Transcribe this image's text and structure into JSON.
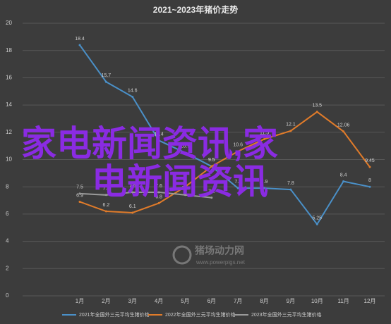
{
  "chart_data": {
    "type": "line",
    "title": "2021~2023年猪价走势",
    "categories": [
      "1月",
      "2月",
      "3月",
      "4月",
      "5月",
      "6月",
      "7月",
      "8月",
      "9月",
      "10月",
      "11月",
      "12月"
    ],
    "series": [
      {
        "name": "2021年全国外三元平均生猪价格",
        "color": "#4a90c8",
        "values": [
          18.4,
          15.7,
          14.6,
          11.4,
          10.5,
          9.5,
          7.9,
          7.9,
          7.8,
          5.25,
          8.4,
          8.0
        ]
      },
      {
        "name": "2022年全国外三元平均生猪价格",
        "color": "#e07b2a",
        "values": [
          6.9,
          6.2,
          6.1,
          6.8,
          8.0,
          9.5,
          10.6,
          11.5,
          12.1,
          13.5,
          12.06,
          9.45
        ]
      },
      {
        "name": "2023年全国外三元平均生猪价格",
        "color": "#9a9a9a",
        "values": [
          7.5,
          7.4,
          7.6,
          7.6,
          7.4,
          7.2,
          null,
          null,
          null,
          null,
          null,
          null
        ]
      }
    ],
    "ylim": [
      0,
      20
    ],
    "yticks": [
      0,
      2,
      4,
      6,
      8,
      10,
      12,
      14,
      16,
      18,
      20
    ],
    "grid": true,
    "legend": "bottom",
    "overlay_text": [
      "家电新闻资讯,家",
      "电新闻资讯"
    ],
    "watermark": [
      "猪场动力网",
      "www.powerpigs.net"
    ]
  }
}
